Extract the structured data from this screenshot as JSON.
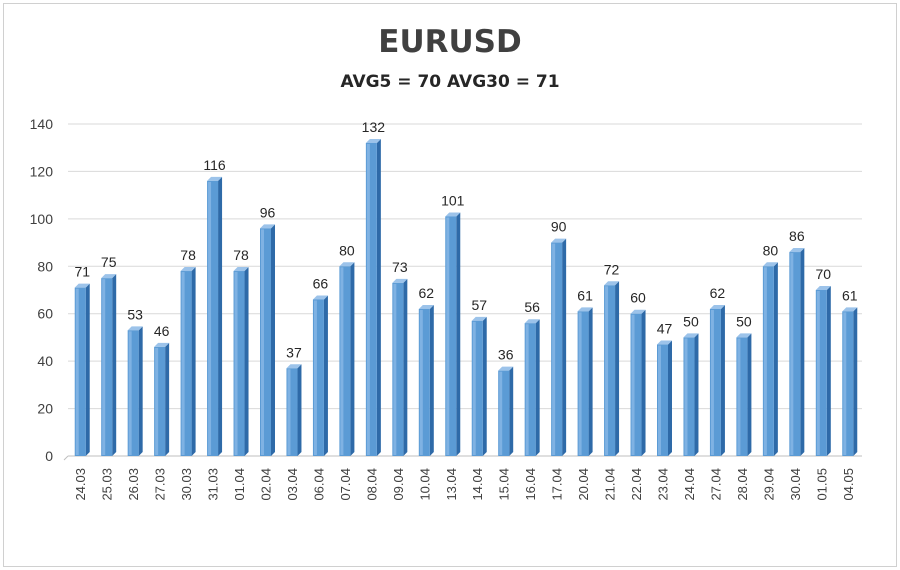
{
  "chart_data": {
    "type": "bar",
    "title": "EURUSD",
    "subtitle": "AVG5 = 70 AVG30 = 71",
    "categories": [
      "24.03",
      "25.03",
      "26.03",
      "27.03",
      "30.03",
      "31.03",
      "01.04",
      "02.04",
      "03.04",
      "06.04",
      "07.04",
      "08.04",
      "09.04",
      "10.04",
      "13.04",
      "14.04",
      "15.04",
      "16.04",
      "17.04",
      "20.04",
      "21.04",
      "22.04",
      "23.04",
      "24.04",
      "27.04",
      "28.04",
      "29.04",
      "30.04",
      "01.05",
      "04.05"
    ],
    "values": [
      71,
      75,
      53,
      46,
      78,
      116,
      78,
      96,
      37,
      66,
      80,
      132,
      73,
      62,
      101,
      57,
      36,
      56,
      90,
      61,
      72,
      60,
      47,
      50,
      62,
      50,
      80,
      86,
      70,
      61
    ],
    "ylim": [
      0,
      140
    ],
    "yticks": [
      0,
      20,
      40,
      60,
      80,
      100,
      120,
      140
    ],
    "grid": true,
    "data_labels": true,
    "bar_color": "#5b9bd5",
    "bar_side_color": "#2e6aa8",
    "bar_top_color": "#9cc3ea",
    "grid_color": "#d9d9d9"
  }
}
